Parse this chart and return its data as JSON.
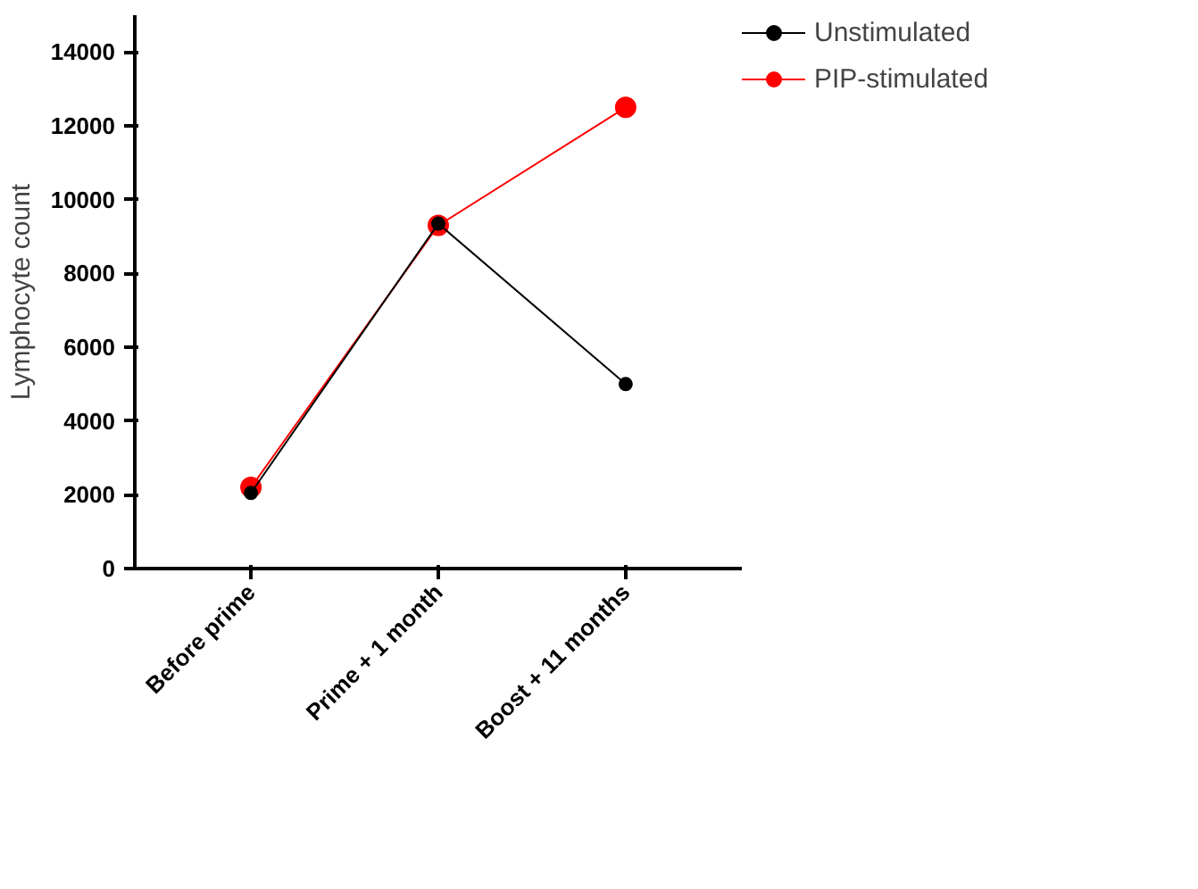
{
  "chart_data": {
    "type": "line",
    "ylabel": "Lymphocyte count",
    "categories": [
      "Before prime",
      "Prime + 1 month",
      "Boost + 11 months"
    ],
    "series": [
      {
        "name": "Unstimulated",
        "color": "#000000",
        "values": [
          2050,
          9350,
          5000
        ],
        "marker": "circle"
      },
      {
        "name": "PIP-stimulated",
        "color": "#ff0000",
        "values": [
          2200,
          9300,
          12500
        ],
        "marker": "circle"
      }
    ],
    "ylim": [
      0,
      15000
    ],
    "yticks": [
      0,
      2000,
      4000,
      6000,
      8000,
      10000,
      12000,
      14000
    ],
    "grid": false,
    "legend": "right",
    "line_style": "solid"
  }
}
